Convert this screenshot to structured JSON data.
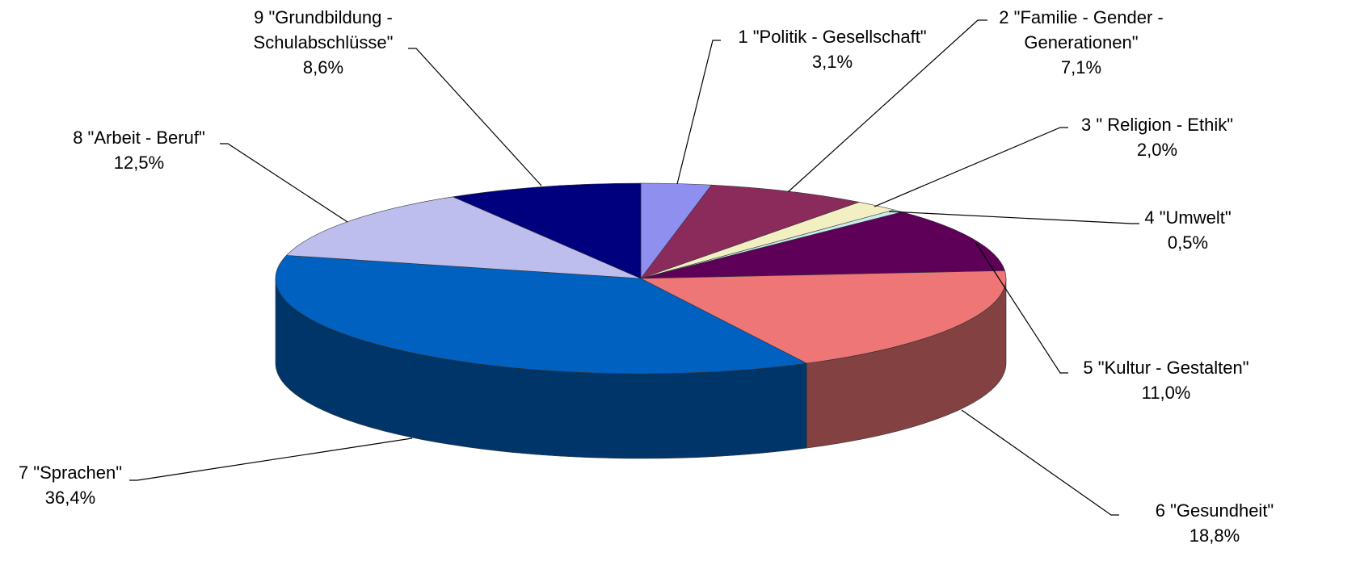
{
  "chart_data": {
    "type": "pie3d",
    "categories": [
      "1 \"Politik - Gesellschaft\"",
      "2 \"Familie - Gender - Generationen\"",
      "3 \" Religion - Ethik\"",
      "4 \"Umwelt\"",
      "5 \"Kultur - Gestalten\"",
      "6 \"Gesundheit\"",
      "7 \"Sprachen\"",
      "8 \"Arbeit - Beruf\"",
      "9 \"Grundbildung - Schulabschlüsse\""
    ],
    "values": [
      3.1,
      7.1,
      2.0,
      0.5,
      11.0,
      18.8,
      36.4,
      12.5,
      8.6
    ],
    "value_labels": [
      "3,1%",
      "7,1%",
      "2,0%",
      "0,5%",
      "11,0%",
      "18,8%",
      "36,4%",
      "12,5%",
      "8,6%"
    ],
    "colors": [
      "#8f8ff0",
      "#8b2b5c",
      "#f2f0c2",
      "#c9ecf0",
      "#5e0058",
      "#ee7676",
      "#0061c1",
      "#bdbdee",
      "#00007e"
    ]
  }
}
